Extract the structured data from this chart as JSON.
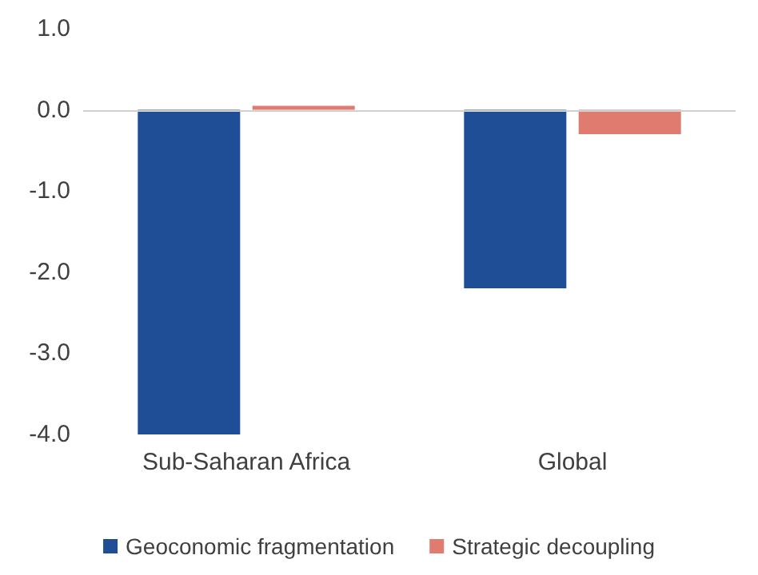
{
  "chart_data": {
    "type": "bar",
    "categories": [
      "Sub-Saharan Africa",
      "Global"
    ],
    "series": [
      {
        "name": "Geoconomic fragmentation",
        "color": "#1f4e96",
        "values": [
          -4.0,
          -2.2
        ]
      },
      {
        "name": "Strategic decoupling",
        "color": "#e07b70",
        "values": [
          0.05,
          -0.3
        ]
      }
    ],
    "ylim": [
      -4.0,
      1.0
    ],
    "yticks": [
      {
        "value": -4,
        "label": "-4.0"
      },
      {
        "value": -3,
        "label": "-3.0"
      },
      {
        "value": -2,
        "label": "-2.0"
      },
      {
        "value": -1,
        "label": "-1.0"
      },
      {
        "value": 0,
        "label": "0.0"
      },
      {
        "value": 1,
        "label": "1.0"
      }
    ],
    "ref_lines": [
      {
        "axis": "y",
        "value": 0,
        "color": "#d0d0d0"
      }
    ],
    "grid": false,
    "legend": "bottom"
  }
}
